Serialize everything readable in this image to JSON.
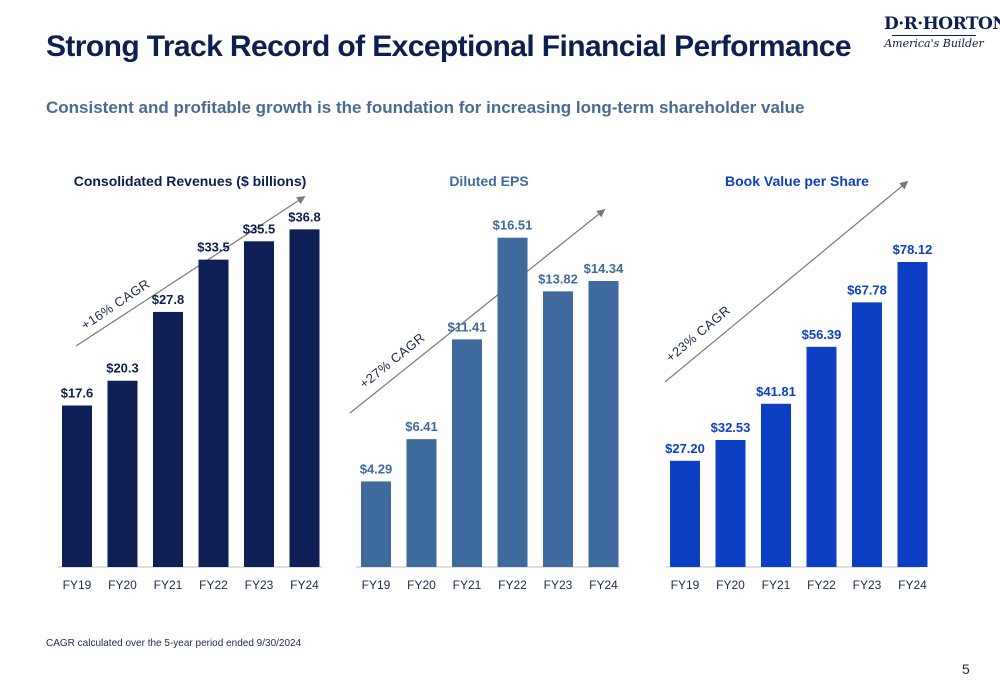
{
  "header": {
    "title": "Strong Track Record of Exceptional Financial Performance",
    "subtitle": "Consistent and profitable growth is the foundation for increasing long-term shareholder value"
  },
  "logo": {
    "main": "D·R·HORTON",
    "tagline": "America's Builder"
  },
  "footnote": "CAGR calculated over the 5-year period ended 9/30/2024",
  "page_number": "5",
  "colors": {
    "title": "#0d1f4f",
    "subtitle": "#4a6a96",
    "revenue": "#0e1f55",
    "eps": "#3e6a9e",
    "book_value": "#0c3fc4"
  },
  "chart_data": [
    {
      "type": "bar",
      "title": "Consolidated Revenues ($ billions)",
      "categories": [
        "FY19",
        "FY20",
        "FY21",
        "FY22",
        "FY23",
        "FY24"
      ],
      "values": [
        17.6,
        20.3,
        27.8,
        33.5,
        35.5,
        36.8
      ],
      "labels": [
        "$17.6",
        "$20.3",
        "$27.8",
        "$33.5",
        "$35.5",
        "$36.8"
      ],
      "annotation": "+16% CAGR",
      "ylim": [
        0,
        40
      ]
    },
    {
      "type": "bar",
      "title": "Diluted EPS",
      "categories": [
        "FY19",
        "FY20",
        "FY21",
        "FY22",
        "FY23",
        "FY24"
      ],
      "values": [
        4.29,
        6.41,
        11.41,
        16.51,
        13.82,
        14.34
      ],
      "labels": [
        "$4.29",
        "$6.41",
        "$11.41",
        "$16.51",
        "$13.82",
        "$14.34"
      ],
      "annotation": "+27% CAGR",
      "ylim": [
        0,
        18.4
      ]
    },
    {
      "type": "bar",
      "title": "Book Value per Share",
      "categories": [
        "FY19",
        "FY20",
        "FY21",
        "FY22",
        "FY23",
        "FY24"
      ],
      "values": [
        27.2,
        32.53,
        41.81,
        56.39,
        67.78,
        78.12
      ],
      "labels": [
        "$27.20",
        "$32.53",
        "$41.81",
        "$56.39",
        "$67.78",
        "$78.12"
      ],
      "annotation": "+23% CAGR",
      "ylim": [
        0,
        94
      ]
    }
  ]
}
